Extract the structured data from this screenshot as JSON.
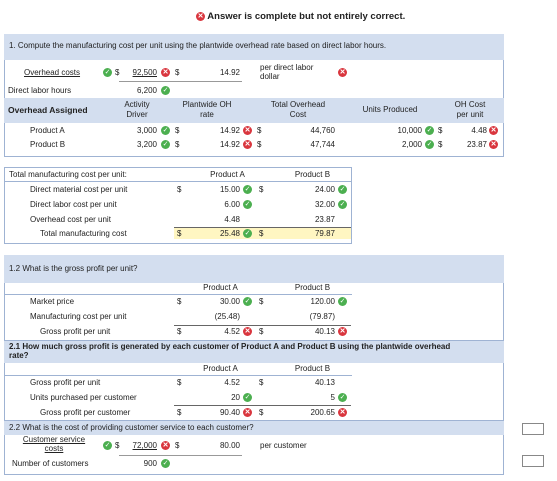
{
  "banner": {
    "text": "Answer is complete but not entirely correct."
  },
  "q1": {
    "title": "1. Compute the manufacturing cost per unit using the plantwide overhead rate based on direct labor hours.",
    "overhead_costs_label": "Overhead costs",
    "overhead_costs_value": "92,500",
    "rate_value": "14.92",
    "rate_unit_line1": "per direct labor",
    "rate_unit_line2": "dollar",
    "dlh_label": "Direct labor hours",
    "dlh_value": "6,200",
    "assigned_label": "Overhead Assigned",
    "col_activity_1": "Activity",
    "col_activity_2": "Driver",
    "col_rate_1": "Plantwide OH",
    "col_rate_2": "rate",
    "col_total_1": "Total Overhead",
    "col_total_2": "Cost",
    "col_units": "Units Produced",
    "col_ohcost_1": "OH Cost",
    "col_ohcost_2": "per unit",
    "rows": [
      {
        "name": "Product A",
        "driver": "3,000",
        "rate": "14.92",
        "total": "44,760",
        "units": "10,000",
        "oh": "4.48"
      },
      {
        "name": "Product B",
        "driver": "3,200",
        "rate": "14.92",
        "total": "47,744",
        "units": "2,000",
        "oh": "23.87"
      }
    ]
  },
  "mfg": {
    "header": "Total manufacturing cost per unit:",
    "col_a": "Product A",
    "col_b": "Product B",
    "rows": [
      {
        "label": "Direct material cost per unit",
        "a": "15.00",
        "b": "24.00"
      },
      {
        "label": "Direct labor cost per unit",
        "a": "6.00",
        "b": "32.00"
      },
      {
        "label": "Overhead cost per unit",
        "a": "4.48",
        "b": "23.87"
      }
    ],
    "total_label": "Total manufacturing cost",
    "total_a": "25.48",
    "total_b": "79.87"
  },
  "q12": {
    "title": "1.2 What is the gross profit per unit?",
    "col_a": "Product A",
    "col_b": "Product B",
    "price_label": "Market price",
    "price_a": "30.00",
    "price_b": "120.00",
    "cost_label": "Manufacturing cost per unit",
    "cost_a": "(25.48)",
    "cost_b": "(79.87)",
    "gp_label": "Gross profit per unit",
    "gp_a": "4.52",
    "gp_b": "40.13"
  },
  "q21": {
    "title": "2.1 How much gross profit is generated by each customer of Product A and Product B using the plantwide overhead rate?",
    "col_a": "Product A",
    "col_b": "Product B",
    "gpu_label": "Gross profit per unit",
    "gpu_a": "4.52",
    "gpu_b": "40.13",
    "units_label": "Units purchased per customer",
    "units_a": "20",
    "units_b": "5",
    "gpc_label": "Gross profit per customer",
    "gpc_a": "90.40",
    "gpc_b": "200.65"
  },
  "q22": {
    "title": "2.2 What is the cost of providing customer service to each customer?",
    "cs_label_1": "Customer service",
    "cs_label_2": "costs",
    "cs_value": "72,000",
    "cs_rate": "80.00",
    "cs_unit": "per customer",
    "cust_label": "Number of customers",
    "cust_value": "900"
  },
  "symbols": {
    "dollar": "$",
    "check": "✓",
    "cross": "✕"
  },
  "colors": {
    "band": "#d3deef",
    "check": "#4caf50",
    "cross": "#d9363e",
    "highlight": "#fff6c2"
  }
}
